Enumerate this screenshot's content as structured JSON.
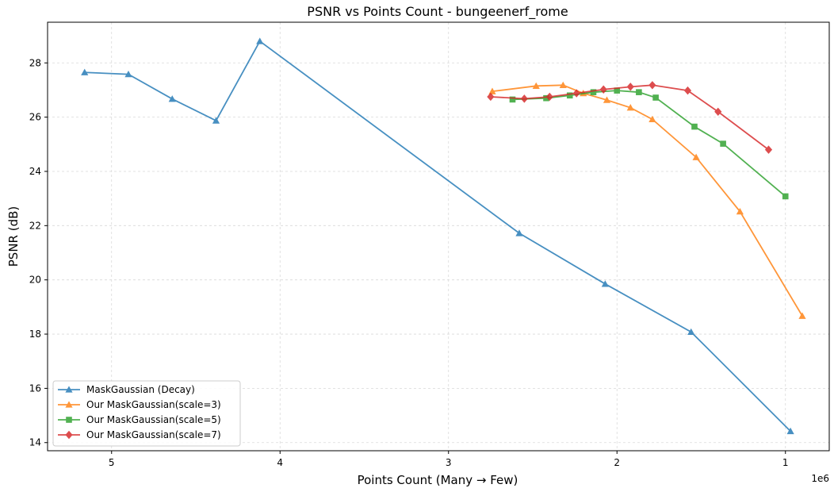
{
  "chart_data": {
    "type": "line",
    "title": "PSNR vs Points Count - bungeenerf_rome",
    "xlabel": "Points Count (Many → Few)",
    "ylabel": "PSNR (dB)",
    "x_multiplier_label": "1e6",
    "x_reversed": true,
    "xlim": [
      5.38,
      0.74
    ],
    "ylim": [
      13.7,
      29.5
    ],
    "x_ticks": [
      5,
      4,
      3,
      2,
      1
    ],
    "y_ticks": [
      14,
      16,
      18,
      20,
      22,
      24,
      26,
      28
    ],
    "grid": true,
    "legend_position": "lower-left",
    "series": [
      {
        "name": "MaskGaussian (Decay)",
        "color": "#1f77b4",
        "marker": "triangle",
        "x": [
          5.16,
          4.9,
          4.64,
          4.38,
          4.12,
          2.58,
          2.07,
          1.56,
          0.97
        ],
        "y": [
          27.65,
          27.58,
          26.67,
          25.87,
          28.8,
          21.72,
          19.85,
          18.08,
          14.42
        ]
      },
      {
        "name": "Our MaskGaussian(scale=3)",
        "color": "#ff7f0e",
        "marker": "triangle",
        "x": [
          2.74,
          2.48,
          2.32,
          2.2,
          2.06,
          1.92,
          1.79,
          1.53,
          1.27,
          0.9
        ],
        "y": [
          26.95,
          27.15,
          27.18,
          26.88,
          26.63,
          26.35,
          25.92,
          24.52,
          22.52,
          18.67
        ]
      },
      {
        "name": "Our MaskGaussian(scale=5)",
        "color": "#2ca02c",
        "marker": "square",
        "x": [
          2.62,
          2.42,
          2.28,
          2.14,
          2.0,
          1.87,
          1.77,
          1.54,
          1.37,
          1.0
        ],
        "y": [
          26.65,
          26.7,
          26.8,
          26.92,
          26.98,
          26.92,
          26.72,
          25.65,
          25.02,
          23.08
        ]
      },
      {
        "name": "Our MaskGaussian(scale=7)",
        "color": "#d62728",
        "marker": "diamond",
        "x": [
          2.75,
          2.55,
          2.4,
          2.24,
          2.08,
          1.92,
          1.79,
          1.58,
          1.4,
          1.1
        ],
        "y": [
          26.75,
          26.68,
          26.75,
          26.88,
          27.02,
          27.12,
          27.18,
          26.98,
          26.2,
          24.8
        ]
      }
    ]
  }
}
